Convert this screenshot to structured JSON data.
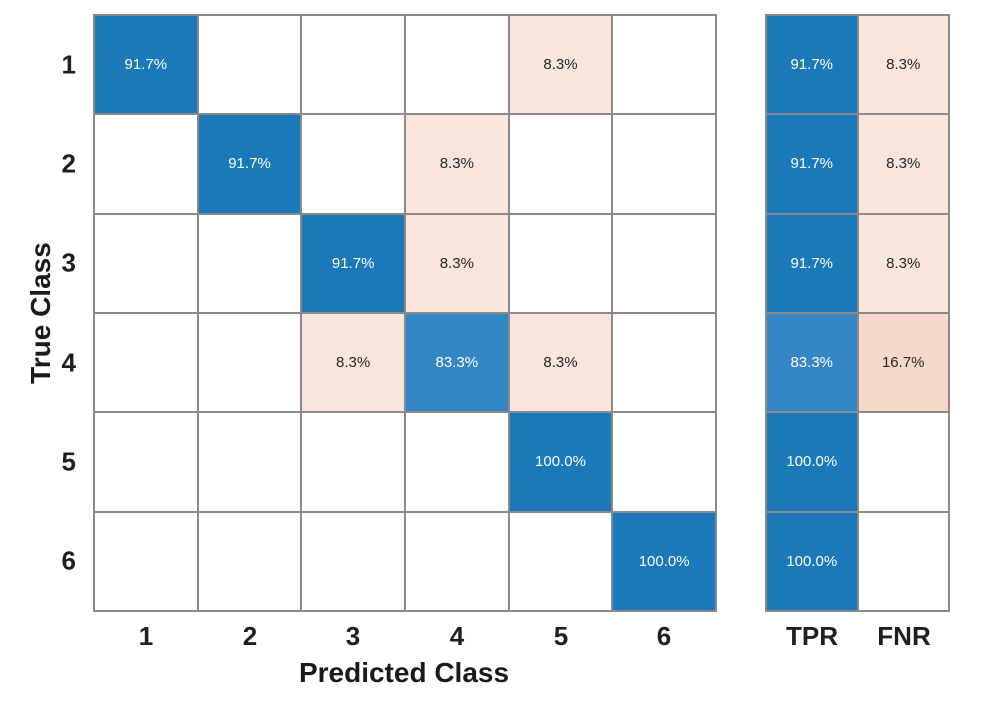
{
  "chart_data": {
    "type": "heatmap",
    "subtype": "confusion_matrix",
    "title": "",
    "xlabel": "Predicted Class",
    "ylabel": "True Class",
    "x_tick_labels": [
      "1",
      "2",
      "3",
      "4",
      "5",
      "6"
    ],
    "y_tick_labels": [
      "1",
      "2",
      "3",
      "4",
      "5",
      "6"
    ],
    "summary_columns": [
      "TPR",
      "FNR"
    ],
    "values_percent": [
      [
        91.7,
        null,
        null,
        null,
        8.3,
        null
      ],
      [
        null,
        91.7,
        null,
        8.3,
        null,
        null
      ],
      [
        null,
        null,
        91.7,
        8.3,
        null,
        null
      ],
      [
        null,
        null,
        8.3,
        83.3,
        8.3,
        null
      ],
      [
        null,
        null,
        null,
        null,
        100.0,
        null
      ],
      [
        null,
        null,
        null,
        null,
        null,
        100.0
      ]
    ],
    "tpr_percent": [
      91.7,
      91.7,
      91.7,
      83.3,
      100.0,
      100.0
    ],
    "fnr_percent": [
      8.3,
      8.3,
      8.3,
      16.7,
      null,
      null
    ],
    "matrix_rows": [
      [
        {
          "v": "91.7%",
          "bg": "blue"
        },
        {
          "v": "",
          "bg": "white"
        },
        {
          "v": "",
          "bg": "white"
        },
        {
          "v": "",
          "bg": "white"
        },
        {
          "v": "8.3%",
          "bg": "pink"
        },
        {
          "v": "",
          "bg": "white"
        }
      ],
      [
        {
          "v": "",
          "bg": "white"
        },
        {
          "v": "91.7%",
          "bg": "blue"
        },
        {
          "v": "",
          "bg": "white"
        },
        {
          "v": "8.3%",
          "bg": "pink"
        },
        {
          "v": "",
          "bg": "white"
        },
        {
          "v": "",
          "bg": "white"
        }
      ],
      [
        {
          "v": "",
          "bg": "white"
        },
        {
          "v": "",
          "bg": "white"
        },
        {
          "v": "91.7%",
          "bg": "blue"
        },
        {
          "v": "8.3%",
          "bg": "pink"
        },
        {
          "v": "",
          "bg": "white"
        },
        {
          "v": "",
          "bg": "white"
        }
      ],
      [
        {
          "v": "",
          "bg": "white"
        },
        {
          "v": "",
          "bg": "white"
        },
        {
          "v": "8.3%",
          "bg": "pink"
        },
        {
          "v": "83.3%",
          "bg": "blue_light"
        },
        {
          "v": "8.3%",
          "bg": "pink"
        },
        {
          "v": "",
          "bg": "white"
        }
      ],
      [
        {
          "v": "",
          "bg": "white"
        },
        {
          "v": "",
          "bg": "white"
        },
        {
          "v": "",
          "bg": "white"
        },
        {
          "v": "",
          "bg": "white"
        },
        {
          "v": "100.0%",
          "bg": "blue"
        },
        {
          "v": "",
          "bg": "white"
        }
      ],
      [
        {
          "v": "",
          "bg": "white"
        },
        {
          "v": "",
          "bg": "white"
        },
        {
          "v": "",
          "bg": "white"
        },
        {
          "v": "",
          "bg": "white"
        },
        {
          "v": "",
          "bg": "white"
        },
        {
          "v": "100.0%",
          "bg": "blue"
        }
      ]
    ],
    "summary_rows": [
      [
        {
          "v": "91.7%",
          "bg": "blue"
        },
        {
          "v": "8.3%",
          "bg": "pink"
        }
      ],
      [
        {
          "v": "91.7%",
          "bg": "blue"
        },
        {
          "v": "8.3%",
          "bg": "pink"
        }
      ],
      [
        {
          "v": "91.7%",
          "bg": "blue"
        },
        {
          "v": "8.3%",
          "bg": "pink"
        }
      ],
      [
        {
          "v": "83.3%",
          "bg": "blue_light"
        },
        {
          "v": "16.7%",
          "bg": "pink_dark"
        }
      ],
      [
        {
          "v": "100.0%",
          "bg": "blue"
        },
        {
          "v": "",
          "bg": "white"
        }
      ],
      [
        {
          "v": "100.0%",
          "bg": "blue"
        },
        {
          "v": "",
          "bg": "white"
        }
      ]
    ]
  },
  "colors": {
    "blue": "#1b79b9",
    "blue_light": "#3287c4",
    "pink": "#f9e5dc",
    "pink_dark": "#f6d8ca",
    "white": "#ffffff",
    "grid_line": "#8a8a8a",
    "text_on_blue": "#ffffff",
    "text_on_pink": "#262626"
  }
}
